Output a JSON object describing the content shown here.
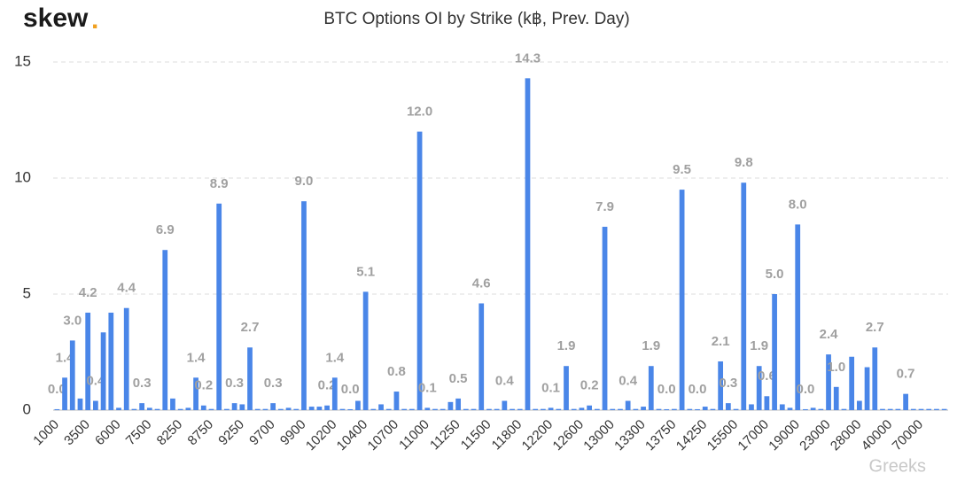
{
  "brand": "skew",
  "brand_dot": ".",
  "watermark": "Greeks",
  "chart_data": {
    "type": "bar",
    "title": "BTC Options OI by Strike (k฿, Prev. Day)",
    "color": "#4a86e8",
    "ylim": [
      0,
      15
    ],
    "yticks": [
      0,
      5,
      10,
      15
    ],
    "grid": true,
    "categories": [
      "1000",
      null,
      null,
      null,
      "3500",
      null,
      null,
      null,
      "6000",
      null,
      null,
      null,
      "7500",
      null,
      null,
      null,
      "8250",
      null,
      null,
      null,
      "8750",
      null,
      null,
      null,
      "9250",
      null,
      null,
      null,
      "9700",
      null,
      null,
      null,
      "9900",
      null,
      null,
      null,
      "10200",
      null,
      null,
      null,
      "10400",
      null,
      null,
      null,
      "10700",
      null,
      null,
      null,
      "11000",
      null,
      null,
      null,
      "11250",
      null,
      null,
      null,
      "11500",
      null,
      null,
      null,
      "11800",
      null,
      null,
      null,
      "12200",
      null,
      null,
      null,
      "12600",
      null,
      null,
      null,
      "13000",
      null,
      null,
      null,
      "13300",
      null,
      null,
      null,
      "13750",
      null,
      null,
      null,
      "14250",
      null,
      null,
      null,
      "15500",
      null,
      null,
      null,
      "17000",
      null,
      null,
      null,
      "19000",
      null,
      null,
      null,
      "23000",
      null,
      null,
      null,
      "28000",
      null,
      null,
      null,
      "40000",
      null,
      null,
      null,
      "70000",
      null,
      null,
      null
    ],
    "values": [
      0.04,
      1.4,
      3.0,
      0.5,
      4.2,
      0.4,
      3.35,
      4.2,
      0.1,
      4.4,
      0.05,
      0.3,
      0.1,
      0.05,
      6.9,
      0.5,
      0.05,
      0.1,
      1.4,
      0.2,
      0.05,
      8.9,
      0.05,
      0.3,
      0.25,
      2.7,
      0.05,
      0.05,
      0.3,
      0.05,
      0.1,
      0.05,
      9.0,
      0.15,
      0.15,
      0.2,
      1.4,
      0.05,
      0.04,
      0.4,
      5.1,
      0.05,
      0.25,
      0.05,
      0.8,
      0.05,
      0.05,
      12.0,
      0.1,
      0.05,
      0.05,
      0.35,
      0.5,
      0.05,
      0.05,
      4.6,
      0.05,
      0.05,
      0.4,
      0.05,
      0.05,
      14.3,
      0.05,
      0.05,
      0.1,
      0.05,
      1.9,
      0.05,
      0.1,
      0.2,
      0.05,
      7.9,
      0.05,
      0.05,
      0.4,
      0.05,
      0.15,
      1.9,
      0.05,
      0.04,
      0.05,
      9.5,
      0.05,
      0.04,
      0.15,
      0.05,
      2.1,
      0.3,
      0.05,
      9.8,
      0.25,
      1.9,
      0.6,
      5.0,
      0.25,
      0.1,
      8.0,
      0.04,
      0.1,
      0.05,
      2.4,
      1.0,
      0.05,
      2.3,
      0.4,
      1.85,
      2.7,
      0.05,
      0.05,
      0.05,
      0.7,
      0.05,
      0.05,
      0.05,
      0.05,
      0.05
    ],
    "value_labels": [
      "0.0",
      "1.4",
      "3.0",
      null,
      "4.2",
      "0.4",
      null,
      null,
      null,
      "4.4",
      null,
      "0.3",
      null,
      null,
      "6.9",
      null,
      null,
      null,
      "1.4",
      "0.2",
      null,
      "8.9",
      null,
      "0.3",
      null,
      "2.7",
      null,
      null,
      "0.3",
      null,
      null,
      null,
      "9.0",
      null,
      null,
      "0.2",
      "1.4",
      null,
      "0.0",
      null,
      "5.1",
      null,
      null,
      null,
      "0.8",
      null,
      null,
      "12.0",
      "0.1",
      null,
      null,
      null,
      "0.5",
      null,
      null,
      "4.6",
      null,
      null,
      "0.4",
      null,
      null,
      "14.3",
      null,
      null,
      "0.1",
      null,
      "1.9",
      null,
      null,
      "0.2",
      null,
      "7.9",
      null,
      null,
      "0.4",
      null,
      null,
      "1.9",
      null,
      "0.0",
      null,
      "9.5",
      null,
      "0.0",
      null,
      null,
      "2.1",
      "0.3",
      null,
      "9.8",
      null,
      "1.9",
      "0.6",
      "5.0",
      null,
      null,
      "8.0",
      "0.0",
      null,
      null,
      "2.4",
      "1.0",
      null,
      null,
      null,
      null,
      "2.7",
      null,
      null,
      null,
      "0.7",
      null,
      null,
      null,
      null,
      null
    ]
  }
}
